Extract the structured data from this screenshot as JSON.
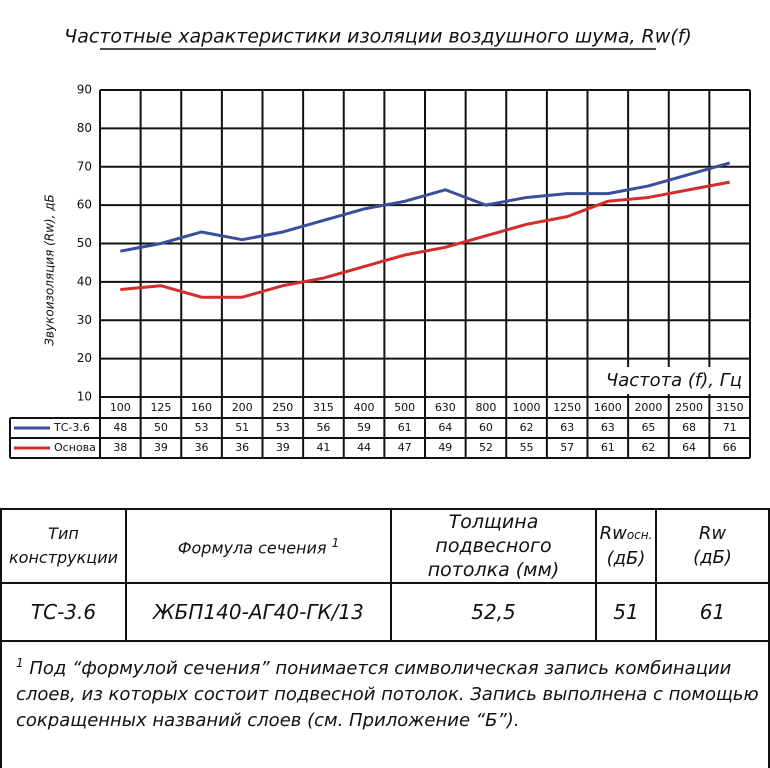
{
  "chart_data": {
    "type": "line",
    "title": "Частотные характеристики изоляции воздушного шума, Rw(f)",
    "y_label": "Звукоизоляция (Rw), дБ",
    "x_label": "Частота (f), Гц",
    "categories": [
      "100",
      "125",
      "160",
      "200",
      "250",
      "315",
      "400",
      "500",
      "630",
      "800",
      "1000",
      "1250",
      "1600",
      "2000",
      "2500",
      "3150"
    ],
    "series": [
      {
        "name": "ТС-3.6",
        "color": "#3a4f9c",
        "values": [
          48,
          50,
          53,
          51,
          53,
          56,
          59,
          61,
          64,
          60,
          62,
          63,
          63,
          65,
          68,
          71
        ]
      },
      {
        "name": "Основа",
        "color": "#d42b2b",
        "values": [
          38,
          39,
          36,
          36,
          39,
          41,
          44,
          47,
          49,
          52,
          55,
          57,
          61,
          62,
          64,
          66
        ]
      }
    ],
    "ylim": [
      10,
      90
    ],
    "yticks": [
      10,
      20,
      30,
      40,
      50,
      60,
      70,
      80,
      90
    ],
    "grid": true
  },
  "table": {
    "headers": [
      {
        "text": "Тип конструкции"
      },
      {
        "text": "Формула сечения",
        "note": "1"
      },
      {
        "text": "Толщина подвесного потолка (мм)"
      },
      {
        "text": "Rw",
        "sub": "осн.",
        "unit": "(дБ)"
      },
      {
        "text": "Rw",
        "unit": "(дБ)"
      }
    ],
    "rows": [
      [
        "ТС-3.6",
        "ЖБП140-АГ40-ГК/13",
        "52,5",
        "51",
        "61"
      ]
    ]
  },
  "footnote": {
    "marker": "1",
    "text": "Под “формулой сечения” понимается символическая запись комбинации слоев, из которых состоит подвесной потолок. Запись выполнена с помощью сокращенных названий слоев (см. Приложение “Б”)."
  }
}
